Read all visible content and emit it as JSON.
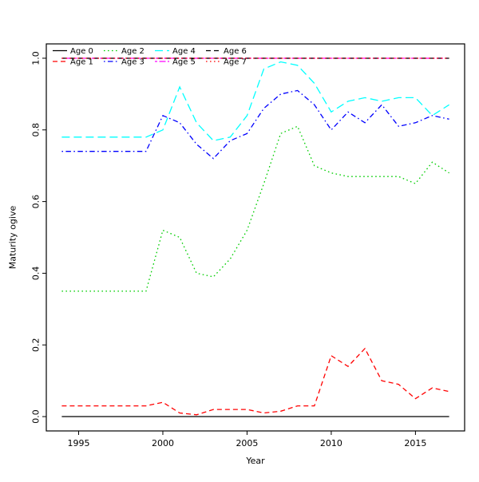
{
  "figure": {
    "background": "#ffffff"
  },
  "chart_data": {
    "type": "line",
    "title": "",
    "xlabel": "Year",
    "ylabel": "Maturity ogive",
    "x": [
      1994,
      1995,
      1996,
      1997,
      1998,
      1999,
      2000,
      2001,
      2002,
      2003,
      2004,
      2005,
      2006,
      2007,
      2008,
      2009,
      2010,
      2011,
      2012,
      2013,
      2014,
      2015,
      2016,
      2017
    ],
    "xlim": [
      1993.08,
      2017.92
    ],
    "ylim": [
      -0.04,
      1.04
    ],
    "xticks": [
      1995,
      2000,
      2005,
      2010,
      2015
    ],
    "xtick_labels": [
      "1995",
      "2000",
      "2005",
      "2010",
      "2015"
    ],
    "yticks": [
      0.0,
      0.2,
      0.4,
      0.6,
      0.8,
      1.0
    ],
    "ytick_labels": [
      "0.0",
      "0.2",
      "0.4",
      "0.6",
      "0.8",
      "1.0"
    ],
    "grid": false,
    "axis_color": "#000000",
    "legend_position": "top-left",
    "legend_rows": 2,
    "series": [
      {
        "name": "Age 0",
        "color": "#000000",
        "dash": "solid",
        "values": [
          0,
          0,
          0,
          0,
          0,
          0,
          0,
          0,
          0,
          0,
          0,
          0,
          0,
          0,
          0,
          0,
          0,
          0,
          0,
          0,
          0,
          0,
          0,
          0
        ]
      },
      {
        "name": "Age 1",
        "color": "#FF0000",
        "dash": "dashed",
        "values": [
          0.03,
          0.03,
          0.03,
          0.03,
          0.03,
          0.03,
          0.04,
          0.01,
          0.005,
          0.02,
          0.02,
          0.02,
          0.01,
          0.015,
          0.03,
          0.03,
          0.17,
          0.14,
          0.19,
          0.1,
          0.09,
          0.05,
          0.08,
          0.07
        ]
      },
      {
        "name": "Age 2",
        "color": "#00CD00",
        "dash": "dotted",
        "values": [
          0.35,
          0.35,
          0.35,
          0.35,
          0.35,
          0.35,
          0.52,
          0.5,
          0.4,
          0.39,
          0.44,
          0.52,
          0.65,
          0.79,
          0.81,
          0.7,
          0.68,
          0.67,
          0.67,
          0.67,
          0.67,
          0.65,
          0.71,
          0.68
        ]
      },
      {
        "name": "Age 3",
        "color": "#0000FF",
        "dash": "dashdot",
        "values": [
          0.74,
          0.74,
          0.74,
          0.74,
          0.74,
          0.74,
          0.84,
          0.82,
          0.76,
          0.72,
          0.77,
          0.79,
          0.86,
          0.9,
          0.91,
          0.87,
          0.8,
          0.85,
          0.82,
          0.87,
          0.81,
          0.82,
          0.84,
          0.83
        ]
      },
      {
        "name": "Age 4",
        "color": "#00FFFF",
        "dash": "longdash",
        "values": [
          0.78,
          0.78,
          0.78,
          0.78,
          0.78,
          0.78,
          0.8,
          0.92,
          0.82,
          0.77,
          0.78,
          0.84,
          0.97,
          0.99,
          0.98,
          0.93,
          0.85,
          0.88,
          0.89,
          0.88,
          0.89,
          0.89,
          0.84,
          0.87
        ]
      },
      {
        "name": "Age 5",
        "color": "#FF00FF",
        "dash": "twodash",
        "values": [
          1,
          1,
          1,
          1,
          1,
          1,
          1,
          1,
          1,
          1,
          1,
          1,
          1,
          1,
          1,
          1,
          1,
          1,
          1,
          1,
          1,
          1,
          1,
          1
        ]
      },
      {
        "name": "Age 6",
        "color": "#000000",
        "dash": "dashed",
        "values": [
          1,
          1,
          1,
          1,
          1,
          1,
          1,
          1,
          1,
          1,
          1,
          1,
          1,
          1,
          1,
          1,
          1,
          1,
          1,
          1,
          1,
          1,
          1,
          1
        ]
      },
      {
        "name": "Age 7",
        "color": "#FF0000",
        "dash": "dotted",
        "values": [
          1,
          1,
          1,
          1,
          1,
          1,
          1,
          1,
          1,
          1,
          1,
          1,
          1,
          1,
          1,
          1,
          1,
          1,
          1,
          1,
          1,
          1,
          1,
          1
        ]
      }
    ]
  }
}
